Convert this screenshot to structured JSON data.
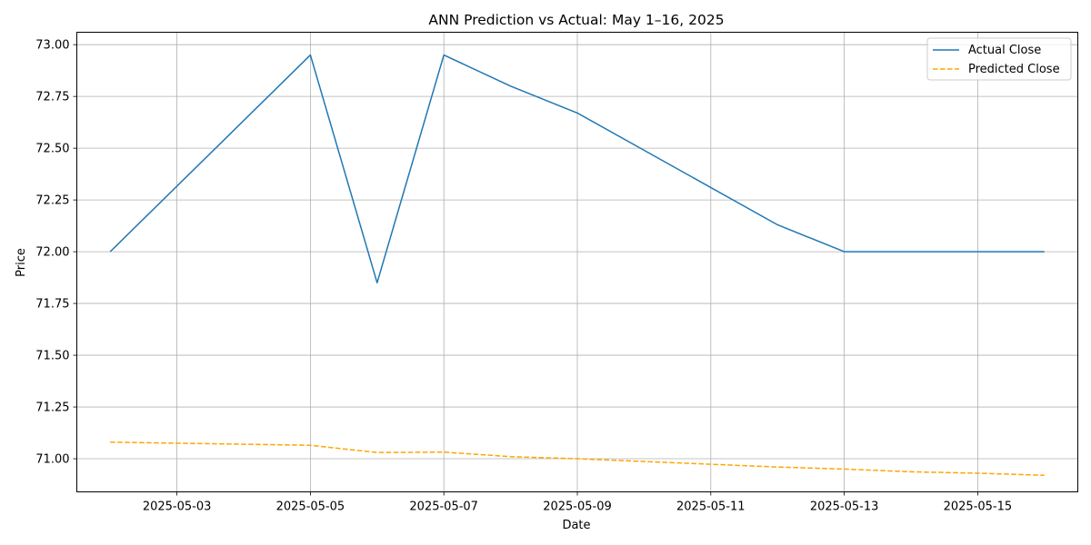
{
  "chart_data": {
    "type": "line",
    "title": "ANN Prediction vs Actual: May 1–16, 2025",
    "xlabel": "Date",
    "ylabel": "Price",
    "x": [
      "2025-05-02",
      "2025-05-05",
      "2025-05-06",
      "2025-05-07",
      "2025-05-08",
      "2025-05-09",
      "2025-05-12",
      "2025-05-13",
      "2025-05-14",
      "2025-05-15",
      "2025-05-16"
    ],
    "xlim": [
      "2025-05-01T12:00",
      "2025-05-16T12:00"
    ],
    "ylim": [
      70.84,
      73.06
    ],
    "xticks": [
      "2025-05-03",
      "2025-05-05",
      "2025-05-07",
      "2025-05-09",
      "2025-05-11",
      "2025-05-13",
      "2025-05-15"
    ],
    "yticks": [
      "71.00",
      "71.25",
      "71.50",
      "71.75",
      "72.00",
      "72.25",
      "72.50",
      "72.75",
      "73.00"
    ],
    "grid": true,
    "legend_position": "top-right",
    "series": [
      {
        "name": "Actual Close",
        "color": "#1f77b4",
        "style": "solid",
        "values": [
          72.0,
          72.95,
          71.85,
          72.95,
          72.8,
          72.67,
          72.13,
          72.0,
          72.0,
          72.0,
          72.0
        ]
      },
      {
        "name": "Predicted Close",
        "color": "#ffa500",
        "style": "dashed",
        "values": [
          71.08,
          71.065,
          71.03,
          71.032,
          71.01,
          71.0,
          70.96,
          70.95,
          70.937,
          70.93,
          70.92
        ]
      }
    ]
  }
}
